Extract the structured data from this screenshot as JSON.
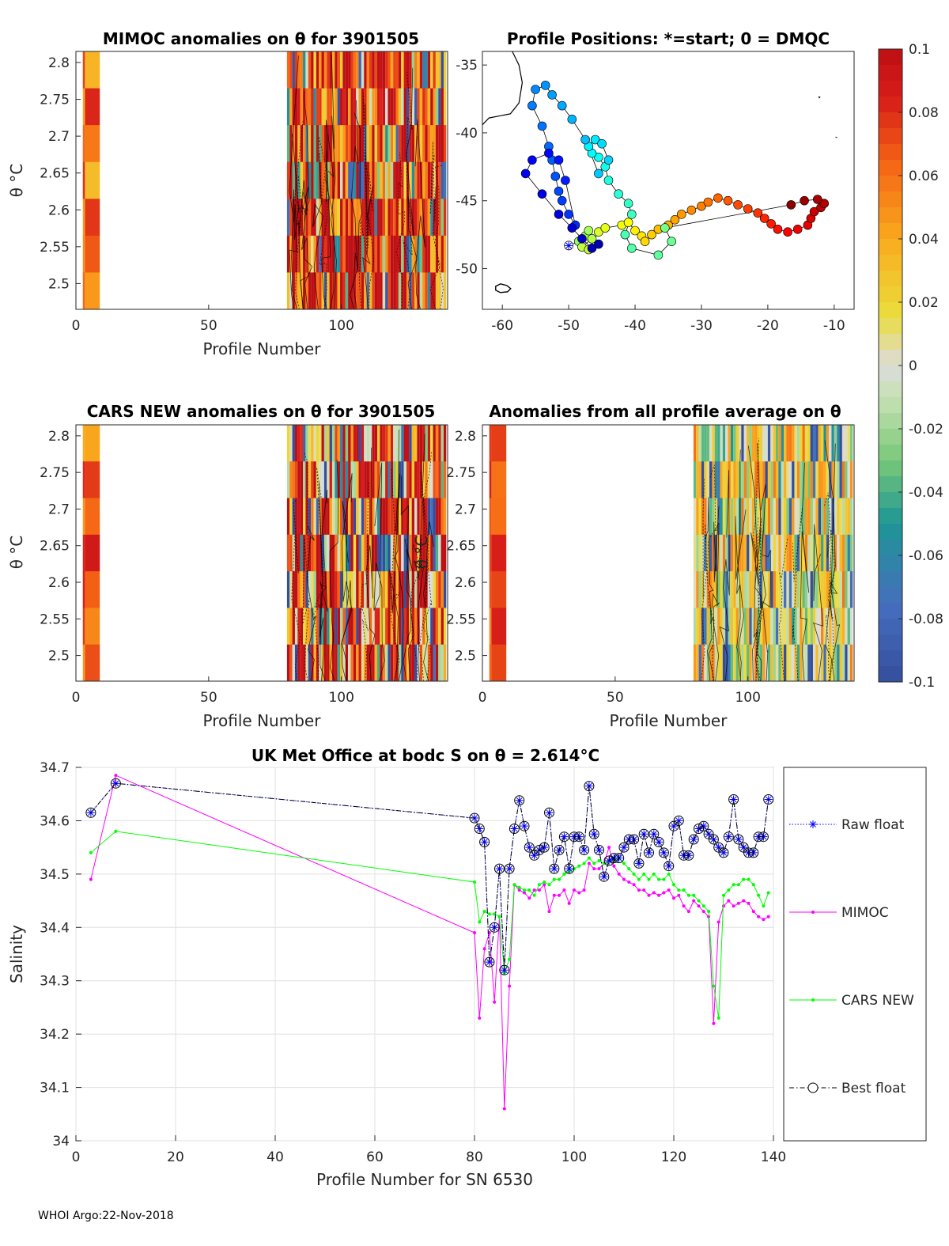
{
  "footer": "WHOI Argo:22-Nov-2018",
  "colorbar": {
    "ticks": [
      "0.1",
      "0.08",
      "0.06",
      "0.04",
      "0.02",
      "0",
      "-0.02",
      "-0.04",
      "-0.06",
      "-0.08",
      "-0.1"
    ],
    "range": [
      -0.1,
      0.1
    ]
  },
  "chart_data": [
    {
      "id": "mimoc",
      "type": "heatmap",
      "title": "MIMOC anomalies on θ  for 3901505",
      "xlabel": "Profile Number",
      "ylabel": "θ °C",
      "xlim": [
        0,
        140
      ],
      "ylim": [
        2.465,
        2.815
      ],
      "xticks": [
        "0",
        "50",
        "100"
      ],
      "yticks": [
        "2.8",
        "2.75",
        "2.7",
        "2.65",
        "2.6",
        "2.55",
        "2.5"
      ],
      "profiles": [
        3,
        8,
        80,
        81,
        82,
        83,
        84,
        85,
        86,
        87,
        88,
        89,
        90,
        91,
        92,
        93,
        94,
        95,
        96,
        97,
        98,
        99,
        100,
        101,
        102,
        103,
        104,
        105,
        106,
        107,
        108,
        109,
        110,
        111,
        112,
        113,
        114,
        115,
        116,
        117,
        118,
        119,
        120,
        121,
        122,
        123,
        124,
        125,
        126,
        127,
        128,
        129,
        130,
        131,
        132,
        133,
        134,
        135,
        136,
        137,
        138,
        139
      ]
    },
    {
      "id": "positions",
      "type": "scatter",
      "title": "Profile Positions: *=start; 0 = DMQC",
      "xlim": [
        -63,
        -7
      ],
      "ylim": [
        -53,
        -34
      ],
      "xticks": [
        "-60",
        "-50",
        "-40",
        "-30",
        "-20",
        "-10"
      ],
      "yticks": [
        "-35",
        "-40",
        "-45",
        "-50"
      ],
      "lon": [
        -50.0,
        -48.5,
        -47.5,
        -47.0,
        -46.5,
        -48.0,
        -47.0,
        -45.5,
        -44.5,
        -42.0,
        -41.0,
        -40.0,
        -39.0,
        -38.5,
        -37.5,
        -36.5,
        -35.0,
        -34.0,
        -33.0,
        -31.5,
        -30.0,
        -29.0,
        -27.5,
        -26.0,
        -24.5,
        -23.0,
        -21.5,
        -20.5,
        -19.5,
        -18.5,
        -17.0,
        -15.5,
        -14.0,
        -13.5,
        -13.0,
        -12.0,
        -11.5,
        -12.5,
        -14.5,
        -16.5,
        -35.5,
        -34.5,
        -36.5,
        -40.5,
        -41.5,
        -40.5,
        -41.0,
        -42.5,
        -44.0,
        -44.5,
        -45.5,
        -46.5,
        -47.0,
        -46.0,
        -45.0,
        -44.0,
        -45.5,
        -47.5,
        -49.5,
        -51.0,
        -52.5,
        -53.5,
        -55.0,
        -55.5,
        -54.0,
        -53.0,
        -52.5,
        -52.0,
        -51.5,
        -51.0,
        -50.0,
        -49.0,
        -50.5,
        -51.5,
        -53.0,
        -55.5,
        -56.5,
        -54.0,
        -51.5,
        -49.5,
        -48.0,
        -46.5,
        -45.5
      ],
      "lat": [
        -48.3,
        -48.0,
        -47.6,
        -47.2,
        -47.8,
        -48.4,
        -48.6,
        -47.3,
        -47.0,
        -46.8,
        -46.6,
        -47.2,
        -47.6,
        -48.0,
        -47.5,
        -47.1,
        -46.8,
        -46.4,
        -46.0,
        -45.7,
        -45.4,
        -45.1,
        -44.8,
        -45.0,
        -45.3,
        -45.6,
        -45.9,
        -46.3,
        -46.7,
        -47.1,
        -47.3,
        -47.1,
        -46.8,
        -46.3,
        -45.8,
        -45.5,
        -45.2,
        -44.9,
        -45.0,
        -45.3,
        -47.0,
        -48.0,
        -49.0,
        -48.5,
        -47.5,
        -46.0,
        -45.2,
        -44.5,
        -43.5,
        -42.5,
        -41.8,
        -41.5,
        -41.0,
        -40.5,
        -40.8,
        -42.0,
        -43.0,
        -40.5,
        -39.0,
        -38.0,
        -37.2,
        -36.5,
        -36.8,
        -38.0,
        -39.5,
        -41.0,
        -42.0,
        -43.2,
        -44.3,
        -45.0,
        -46.0,
        -46.8,
        -43.5,
        -42.0,
        -41.5,
        -42.0,
        -43.0,
        -44.5,
        -46.0,
        -47.0,
        -47.8,
        -48.5,
        -48.2
      ],
      "colorvar": "profile number"
    },
    {
      "id": "cars",
      "type": "heatmap",
      "title": "CARS NEW anomalies on θ for 3901505",
      "xlabel": "Profile Number",
      "ylabel": "θ °C",
      "xlim": [
        0,
        140
      ],
      "ylim": [
        2.465,
        2.815
      ],
      "xticks": [
        "0",
        "50",
        "100"
      ],
      "yticks": [
        "2.8",
        "2.75",
        "2.7",
        "2.65",
        "2.6",
        "2.55",
        "2.5"
      ]
    },
    {
      "id": "allavg",
      "type": "heatmap",
      "title": "Anomalies from all profile average on θ",
      "xlabel": "Profile Number",
      "ylabel": "θ °C",
      "xlim": [
        0,
        140
      ],
      "ylim": [
        2.465,
        2.815
      ],
      "xticks": [
        "0",
        "50",
        "100"
      ],
      "yticks": [
        "2.8",
        "2.75",
        "2.7",
        "2.65",
        "2.6",
        "2.55",
        "2.5"
      ]
    },
    {
      "id": "salinity",
      "type": "line",
      "title": "UK Met Office at bodc S on θ = 2.614°C",
      "xlabel": "Profile Number for SN 6530",
      "ylabel": "Salinity",
      "xlim": [
        0,
        140
      ],
      "ylim": [
        34.0,
        34.7
      ],
      "xticks": [
        "0",
        "20",
        "40",
        "60",
        "80",
        "100",
        "120",
        "140"
      ],
      "yticks": [
        "34.7",
        "34.6",
        "34.5",
        "34.4",
        "34.3",
        "34.2",
        "34.1",
        "34"
      ],
      "x": [
        3,
        8,
        80,
        81,
        82,
        83,
        84,
        85,
        86,
        87,
        88,
        89,
        90,
        91,
        92,
        93,
        94,
        95,
        96,
        97,
        98,
        99,
        100,
        101,
        102,
        103,
        104,
        105,
        106,
        107,
        108,
        109,
        110,
        111,
        112,
        113,
        114,
        115,
        116,
        117,
        118,
        119,
        120,
        121,
        122,
        123,
        124,
        125,
        126,
        127,
        128,
        129,
        130,
        131,
        132,
        133,
        134,
        135,
        136,
        137,
        138,
        139
      ],
      "series": [
        {
          "name": "Raw float",
          "color": "#0000ff",
          "values": [
            34.615,
            34.67,
            34.605,
            34.585,
            34.56,
            34.335,
            34.4,
            34.51,
            34.32,
            34.51,
            34.585,
            34.638,
            34.59,
            34.55,
            34.535,
            34.545,
            34.55,
            34.615,
            34.51,
            34.545,
            34.57,
            34.51,
            34.57,
            34.57,
            34.545,
            34.665,
            34.575,
            34.545,
            34.495,
            34.525,
            34.53,
            34.53,
            34.55,
            34.565,
            34.565,
            34.52,
            34.575,
            34.54,
            34.575,
            34.56,
            34.54,
            34.515,
            34.59,
            34.6,
            34.535,
            34.535,
            34.565,
            34.585,
            34.59,
            34.575,
            34.565,
            34.55,
            34.54,
            34.57,
            34.64,
            34.565,
            34.55,
            34.54,
            34.54,
            34.57,
            34.57,
            34.64
          ]
        },
        {
          "name": "MIMOC",
          "color": "#ff00ff",
          "values": [
            34.49,
            34.685,
            34.39,
            34.23,
            34.36,
            34.39,
            34.26,
            34.42,
            34.06,
            34.29,
            34.48,
            34.47,
            34.465,
            34.455,
            34.47,
            34.47,
            34.48,
            34.43,
            34.46,
            34.46,
            34.47,
            34.445,
            34.47,
            34.465,
            34.47,
            34.52,
            34.51,
            34.51,
            34.52,
            34.55,
            34.515,
            34.5,
            34.49,
            34.485,
            34.48,
            34.47,
            34.47,
            34.46,
            34.465,
            34.46,
            34.465,
            34.47,
            34.455,
            34.46,
            34.44,
            34.43,
            34.45,
            34.44,
            34.43,
            34.42,
            34.22,
            34.41,
            34.44,
            34.45,
            34.44,
            34.445,
            34.45,
            34.445,
            34.43,
            34.42,
            34.415,
            34.42
          ]
        },
        {
          "name": "CARS NEW",
          "color": "#00ff00",
          "values": [
            34.54,
            34.58,
            34.485,
            34.41,
            34.43,
            34.425,
            34.425,
            34.42,
            34.315,
            34.34,
            34.48,
            34.475,
            34.47,
            34.47,
            34.46,
            34.48,
            34.485,
            34.48,
            34.49,
            34.49,
            34.5,
            34.505,
            34.51,
            34.515,
            34.52,
            34.53,
            34.52,
            34.525,
            34.52,
            34.525,
            34.525,
            34.53,
            34.52,
            34.51,
            34.5,
            34.49,
            34.5,
            34.49,
            34.5,
            34.49,
            34.49,
            34.5,
            34.48,
            34.47,
            34.47,
            34.46,
            34.46,
            34.45,
            34.44,
            34.43,
            34.29,
            34.23,
            34.46,
            34.47,
            34.48,
            34.48,
            34.49,
            34.49,
            34.48,
            34.46,
            34.44,
            34.465
          ]
        },
        {
          "name": "Best float",
          "color": "#000000",
          "values": [
            34.615,
            34.67,
            34.605,
            34.585,
            34.56,
            34.335,
            34.4,
            34.51,
            34.32,
            34.51,
            34.585,
            34.638,
            34.59,
            34.55,
            34.535,
            34.545,
            34.55,
            34.615,
            34.51,
            34.545,
            34.57,
            34.51,
            34.57,
            34.57,
            34.545,
            34.665,
            34.575,
            34.545,
            34.495,
            34.525,
            34.53,
            34.53,
            34.55,
            34.565,
            34.565,
            34.52,
            34.575,
            34.54,
            34.575,
            34.56,
            34.54,
            34.515,
            34.59,
            34.6,
            34.535,
            34.535,
            34.565,
            34.585,
            34.59,
            34.575,
            34.565,
            34.55,
            34.54,
            34.57,
            34.64,
            34.565,
            34.55,
            34.54,
            34.54,
            34.57,
            34.57,
            34.64
          ]
        }
      ]
    }
  ]
}
